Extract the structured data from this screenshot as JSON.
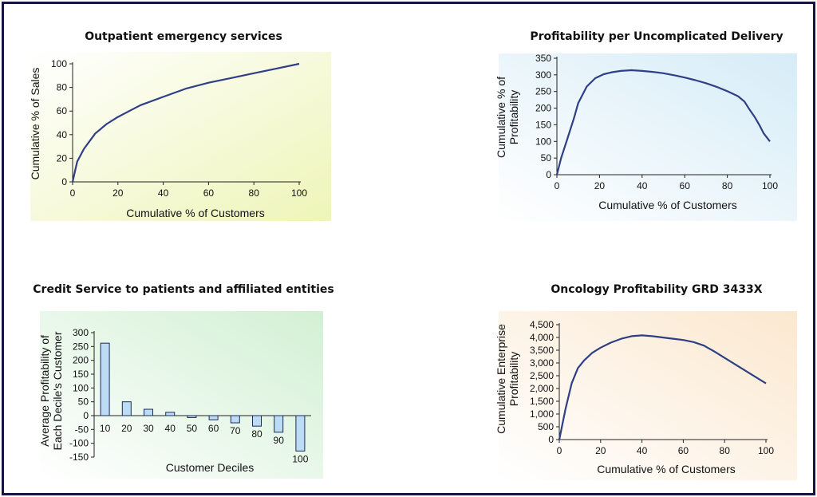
{
  "chart_data": [
    {
      "type": "line",
      "title": "Outpatient emergency services",
      "xlabel": "Cumulative % of Customers",
      "ylabel": "Cumulative % of Sales",
      "xlim": [
        0,
        100
      ],
      "ylim": [
        0,
        100
      ],
      "xticks": [
        "0",
        "20",
        "40",
        "60",
        "80",
        "100"
      ],
      "yticks": [
        "0",
        "20",
        "40",
        "60",
        "80",
        "100"
      ],
      "series": [
        {
          "x": [
            0,
            2,
            5,
            10,
            15,
            20,
            25,
            30,
            40,
            50,
            60,
            70,
            80,
            90,
            100
          ],
          "y": [
            0,
            17,
            28,
            41,
            49,
            55,
            60,
            65,
            72,
            79,
            84,
            88,
            92,
            96,
            100
          ]
        }
      ]
    },
    {
      "type": "line",
      "title": "Profitability per Uncomplicated Delivery",
      "xlabel": "Cumulative % of Customers",
      "ylabel_lines": [
        "Cumulative % of",
        "Profitability"
      ],
      "xlim": [
        0,
        100
      ],
      "ylim": [
        0,
        350
      ],
      "xticks": [
        "0",
        "20",
        "40",
        "60",
        "80",
        "100"
      ],
      "yticks": [
        "0",
        "50",
        "100",
        "150",
        "200",
        "250",
        "300",
        "350"
      ],
      "series": [
        {
          "x": [
            0,
            2,
            5,
            8,
            10,
            14,
            18,
            22,
            26,
            30,
            35,
            40,
            45,
            50,
            55,
            60,
            65,
            70,
            75,
            80,
            85,
            88,
            90,
            93,
            95,
            97,
            100
          ],
          "y": [
            0,
            50,
            110,
            170,
            215,
            265,
            290,
            302,
            308,
            312,
            314,
            312,
            309,
            305,
            299,
            292,
            284,
            275,
            264,
            251,
            236,
            220,
            200,
            172,
            150,
            125,
            100
          ]
        }
      ]
    },
    {
      "type": "bar",
      "title": "Credit Service to patients and affiliated entities",
      "xlabel": "Customer Deciles",
      "ylabel_lines": [
        "Average Profitability of",
        "Each Decile's Customer"
      ],
      "ylim": [
        -150,
        300
      ],
      "yticks": [
        "300",
        "250",
        "200",
        "150",
        "100",
        "50",
        "0",
        "-50",
        "-100",
        "-150"
      ],
      "categories": [
        "10",
        "20",
        "30",
        "40",
        "50",
        "60",
        "70",
        "80",
        "90",
        "100"
      ],
      "values": [
        262,
        50,
        23,
        12,
        -7,
        -15,
        -26,
        -38,
        -60,
        -128
      ]
    },
    {
      "type": "line",
      "title": "Oncology Profitability GRD 3433X",
      "xlabel": "Cumulative % of Customers",
      "ylabel_lines": [
        "Cumulative Enterprise",
        "Profitability"
      ],
      "xlim": [
        0,
        100
      ],
      "ylim": [
        0,
        4500
      ],
      "xticks": [
        "0",
        "20",
        "40",
        "60",
        "80",
        "100"
      ],
      "yticks": [
        "0",
        "500",
        "1,000",
        "1,500",
        "2,000",
        "2,500",
        "3,000",
        "3,500",
        "4,000",
        "4,500"
      ],
      "series": [
        {
          "x": [
            0,
            3,
            6,
            9,
            12,
            16,
            20,
            25,
            30,
            35,
            40,
            45,
            50,
            55,
            60,
            65,
            70,
            75,
            80,
            85,
            90,
            95,
            100
          ],
          "y": [
            0,
            1200,
            2200,
            2800,
            3100,
            3400,
            3600,
            3800,
            3950,
            4050,
            4080,
            4050,
            4000,
            3950,
            3900,
            3820,
            3680,
            3450,
            3200,
            2950,
            2700,
            2450,
            2200
          ]
        }
      ]
    }
  ]
}
